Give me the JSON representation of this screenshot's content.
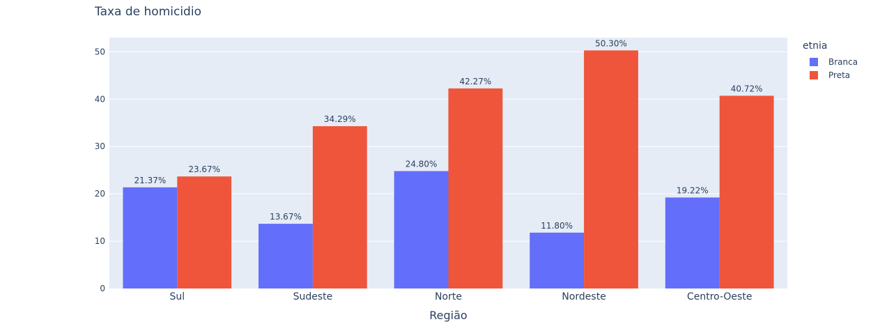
{
  "chart_data": {
    "type": "bar",
    "title": "Taxa de homicidio",
    "xlabel": "Região",
    "ylabel": "",
    "ylim": [
      0,
      53
    ],
    "yticks": [
      0,
      10,
      20,
      30,
      40,
      50
    ],
    "categories": [
      "Sul",
      "Sudeste",
      "Norte",
      "Nordeste",
      "Centro-Oeste"
    ],
    "legend_title": "etnia",
    "legend_position": "top-right",
    "grid": true,
    "series": [
      {
        "name": "Branca",
        "color": "#636efa",
        "values": [
          21.37,
          13.67,
          24.8,
          11.8,
          19.22
        ],
        "labels": [
          "21.37%",
          "13.67%",
          "24.80%",
          "11.80%",
          "19.22%"
        ]
      },
      {
        "name": "Preta",
        "color": "#ef553b",
        "values": [
          23.67,
          34.29,
          42.27,
          50.3,
          40.72
        ],
        "labels": [
          "23.67%",
          "34.29%",
          "42.27%",
          "50.30%",
          "40.72%"
        ]
      }
    ]
  }
}
